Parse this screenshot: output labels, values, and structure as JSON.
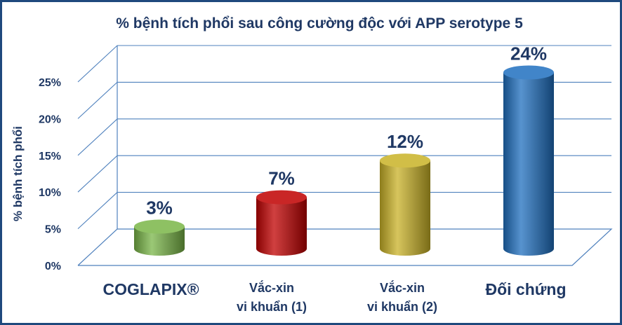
{
  "chart_data": {
    "type": "bar",
    "title": "% bệnh tích phổi sau công cường độc với APP serotype 5",
    "ylabel": "% bệnh tích phổi",
    "xlabel": "",
    "ylim": [
      0,
      25
    ],
    "yticks": [
      "0%",
      "5%",
      "10%",
      "15%",
      "20%",
      "25%"
    ],
    "grid": true,
    "legend": "none",
    "categories": [
      [
        "COGLAPIX®"
      ],
      [
        "Vắc-xin",
        "vi khuẩn (1)"
      ],
      [
        "Vắc-xin",
        "vi khuẩn (2)"
      ],
      [
        "Đối chứng"
      ]
    ],
    "values": [
      3,
      7,
      12,
      24
    ],
    "data_labels": [
      "3%",
      "7%",
      "12%",
      "24%"
    ],
    "colors": [
      "#7ab648",
      "#c00000",
      "#c9b227",
      "#1f6fbf"
    ]
  },
  "colors": {
    "title": "#1f3864",
    "axis_text": "#1f3864",
    "grid": "#4f81bd",
    "frame": "#1f497d"
  }
}
